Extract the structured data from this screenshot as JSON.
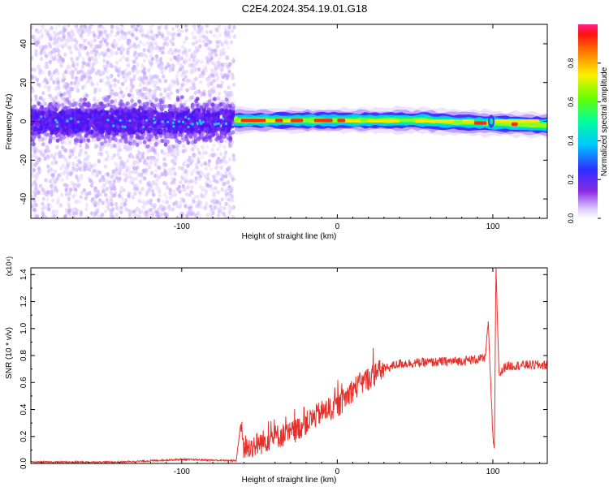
{
  "title": "C2E4.2024.354.19.01.G18",
  "chart_data": [
    {
      "type": "heatmap",
      "xlabel": "Height of straight line (km)",
      "ylabel": "Frequency (Hz)",
      "xlim": [
        -197,
        135
      ],
      "ylim": [
        -50,
        50
      ],
      "xticks": [
        -100,
        0,
        100
      ],
      "yticks": [
        -40,
        -20,
        0,
        20,
        40
      ],
      "colorbar": {
        "label": "Normalized spectral amplitude",
        "range": [
          0,
          1
        ],
        "ticks": [
          "0.0",
          "0.2",
          "0.4",
          "0.6",
          "0.8"
        ]
      },
      "regions": [
        {
          "x": [
            -197,
            -66
          ],
          "frequency_spread_hz": [
            -50,
            50
          ],
          "amplitude": "low, noisy"
        },
        {
          "x": [
            -66,
            135
          ],
          "frequency_spread_hz": [
            -5,
            5
          ],
          "amplitude": "high, concentrated near 0 Hz"
        }
      ]
    },
    {
      "type": "line",
      "xlabel": "Height of straight line (km)",
      "ylabel": "SNR (10 * v/v)",
      "y_multiplier": "(x10⁴)",
      "xlim": [
        -197,
        135
      ],
      "ylim": [
        0,
        1.45
      ],
      "xticks": [
        -100,
        0,
        100
      ],
      "yticks": [
        "0.0",
        "0.2",
        "0.4",
        "0.6",
        "0.8",
        "1.0",
        "1.2",
        "1.4"
      ],
      "color": "#e8302a",
      "series_profile": [
        [
          -197,
          0.01
        ],
        [
          -140,
          0.01
        ],
        [
          -100,
          0.03
        ],
        [
          -65,
          0.02
        ],
        [
          -62,
          0.3
        ],
        [
          -60,
          0.1
        ],
        [
          -50,
          0.15
        ],
        [
          -40,
          0.2
        ],
        [
          -30,
          0.22
        ],
        [
          -20,
          0.3
        ],
        [
          -10,
          0.38
        ],
        [
          0,
          0.42
        ],
        [
          10,
          0.55
        ],
        [
          20,
          0.63
        ],
        [
          30,
          0.7
        ],
        [
          40,
          0.74
        ],
        [
          60,
          0.75
        ],
        [
          80,
          0.76
        ],
        [
          95,
          0.78
        ],
        [
          97,
          1.05
        ],
        [
          100,
          0.2
        ],
        [
          101,
          0.08
        ],
        [
          102,
          1.45
        ],
        [
          104,
          0.65
        ],
        [
          108,
          0.72
        ],
        [
          120,
          0.73
        ],
        [
          135,
          0.73
        ]
      ]
    }
  ]
}
